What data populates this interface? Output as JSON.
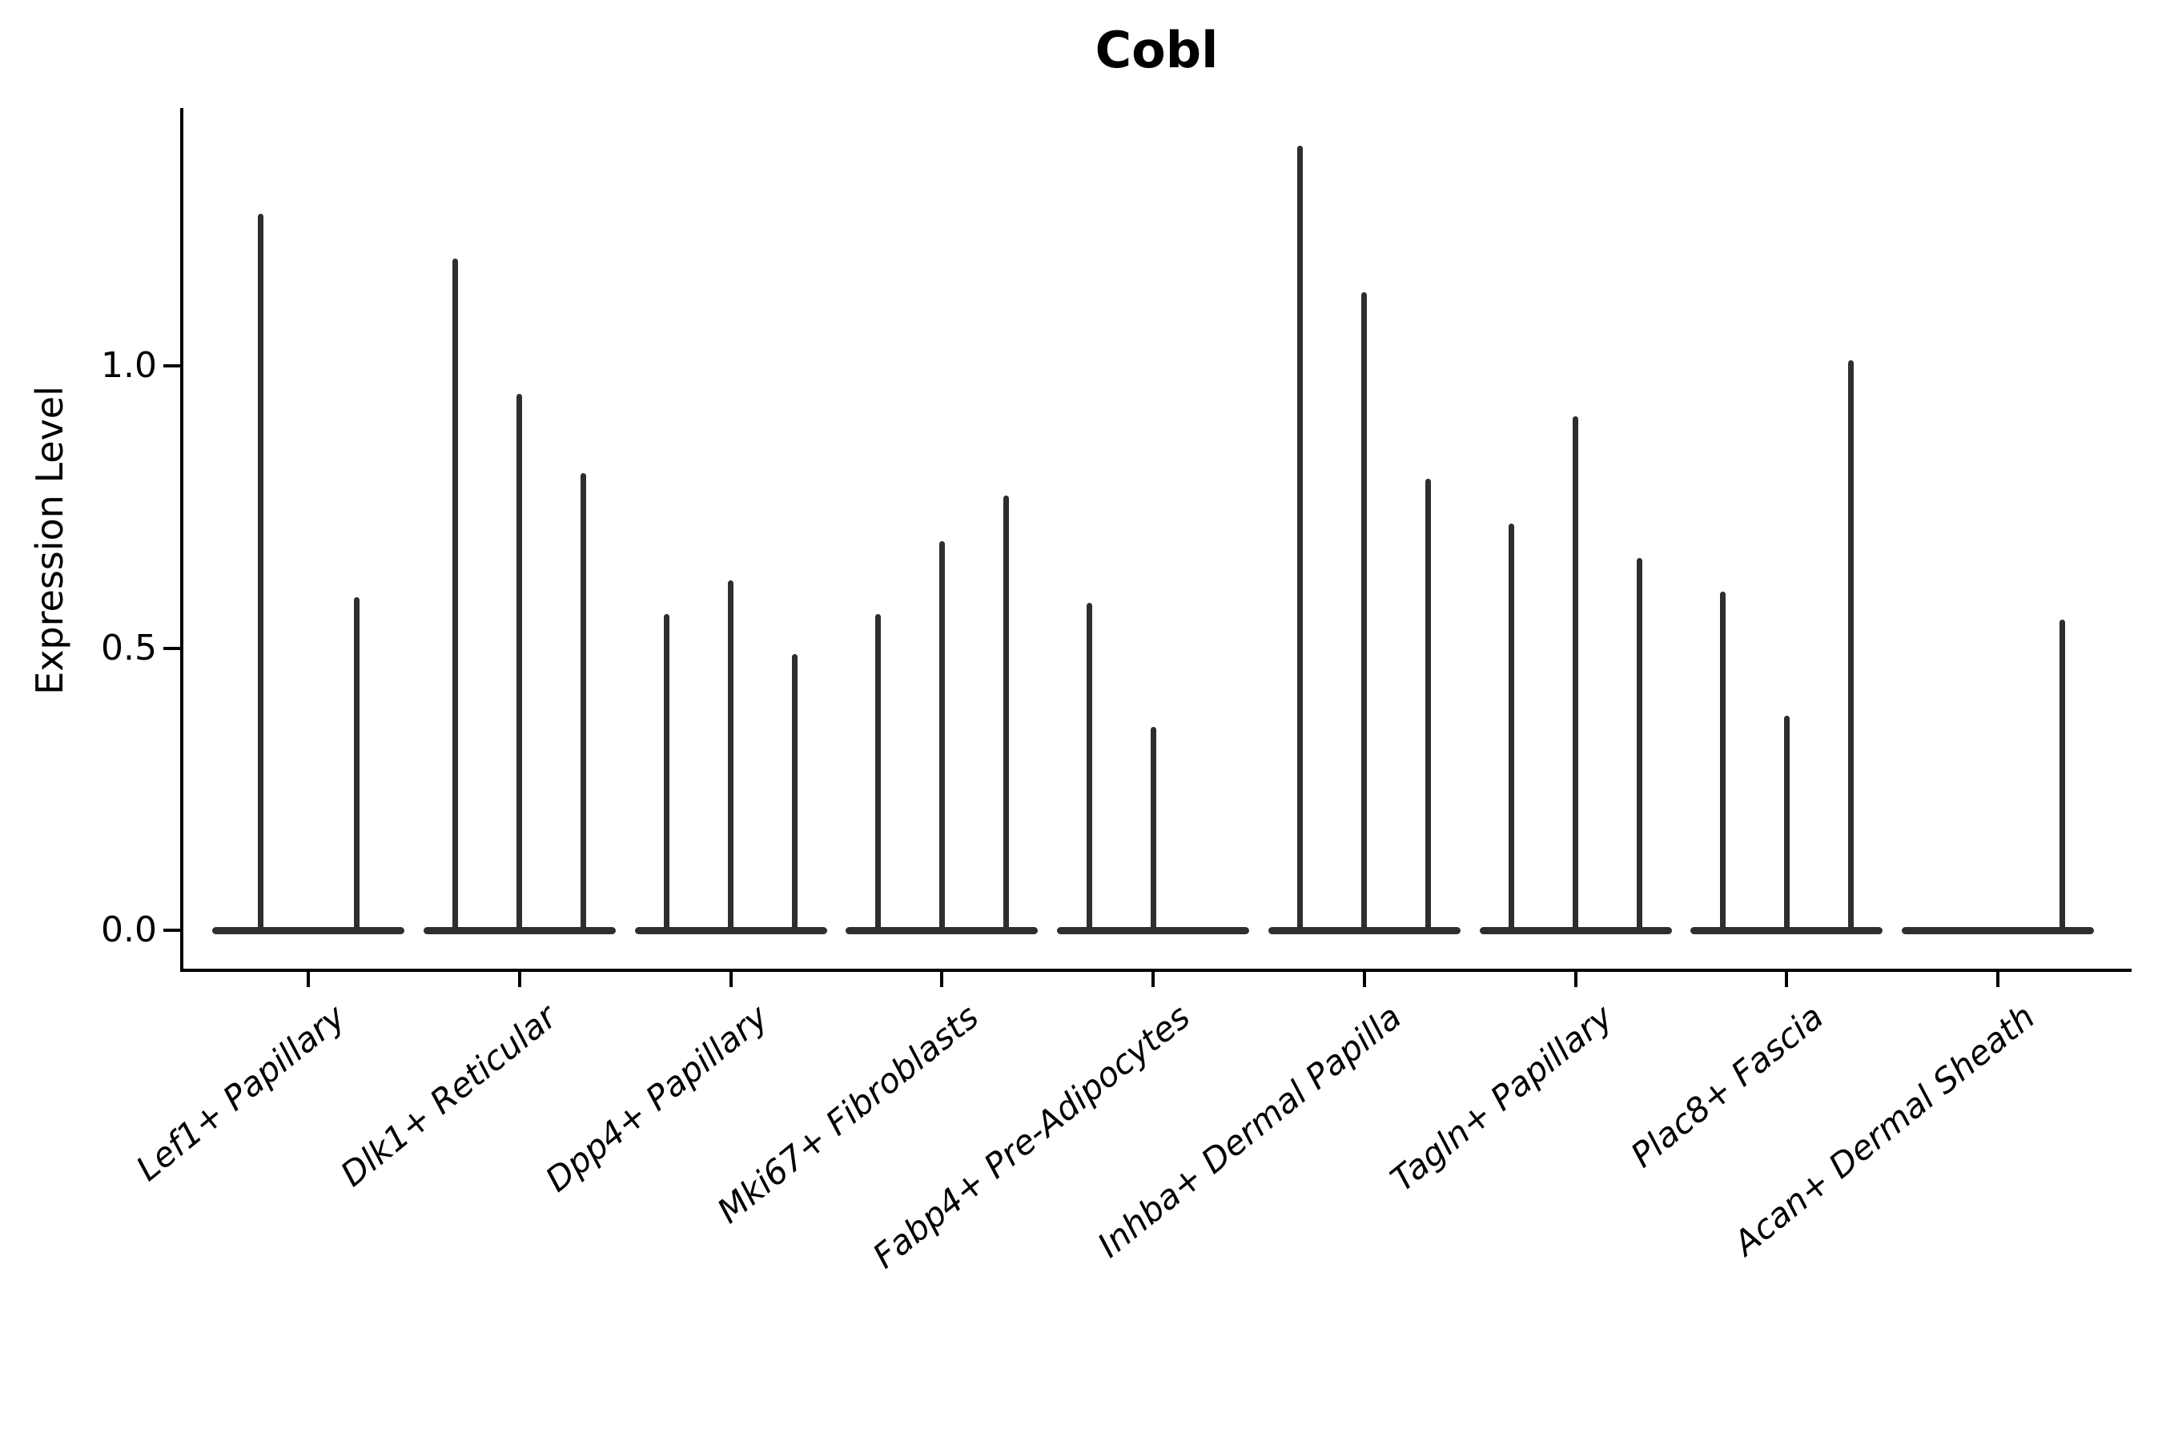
{
  "figure": {
    "title": "Cobl"
  },
  "axes": {
    "ylabel": "Expression Level",
    "ytick_labels": [
      "0.0",
      "0.5",
      "1.0"
    ]
  },
  "chart_data": {
    "type": "violin",
    "title": "Cobl",
    "xlabel": "",
    "ylabel": "Expression Level",
    "ylim": [
      -0.07,
      1.46
    ],
    "yticks": [
      0.0,
      0.5,
      1.0
    ],
    "grid": false,
    "legend": null,
    "description": "Needle-thin violin plot of Cobl expression; each category shows 2-3 narrow violins whose mass is concentrated at 0 (wide dark base bar) with a thin spike reaching the maximum expression value.",
    "categories": [
      "Lef1+ Papillary",
      "Dlk1+ Reticular",
      "Dpp4+ Papillary",
      "Mki67+ Fibroblasts",
      "Fabp4+ Pre-Adipocytes",
      "Inhba+ Dermal Papilla",
      "Tagln+ Papillary",
      "Plac8+ Fascia",
      "Acan+ Dermal Sheath"
    ],
    "groups": [
      {
        "label": "Lef1+ Papillary",
        "violin_max_expression": [
          1.27,
          0.59
        ]
      },
      {
        "label": "Dlk1+ Reticular",
        "violin_max_expression": [
          1.19,
          0.95,
          0.81
        ]
      },
      {
        "label": "Dpp4+ Papillary",
        "violin_max_expression": [
          0.56,
          0.62,
          0.49
        ]
      },
      {
        "label": "Mki67+ Fibroblasts",
        "violin_max_expression": [
          0.56,
          0.69,
          0.77
        ]
      },
      {
        "label": "Fabp4+ Pre-Adipocytes",
        "violin_max_expression": [
          0.58,
          0.36,
          0.0
        ]
      },
      {
        "label": "Inhba+ Dermal Papilla",
        "violin_max_expression": [
          1.39,
          1.13,
          0.8
        ]
      },
      {
        "label": "Tagln+ Papillary",
        "violin_max_expression": [
          0.72,
          0.91,
          0.66
        ]
      },
      {
        "label": "Plac8+ Fascia",
        "violin_max_expression": [
          0.6,
          0.38,
          1.01
        ]
      },
      {
        "label": "Acan+ Dermal Sheath",
        "violin_max_expression": [
          0.0,
          0.0,
          0.55
        ]
      }
    ],
    "colors": {
      "violin_line": "#2e2e2e",
      "axis": "#000000",
      "text": "#000000",
      "background": "#ffffff"
    }
  }
}
